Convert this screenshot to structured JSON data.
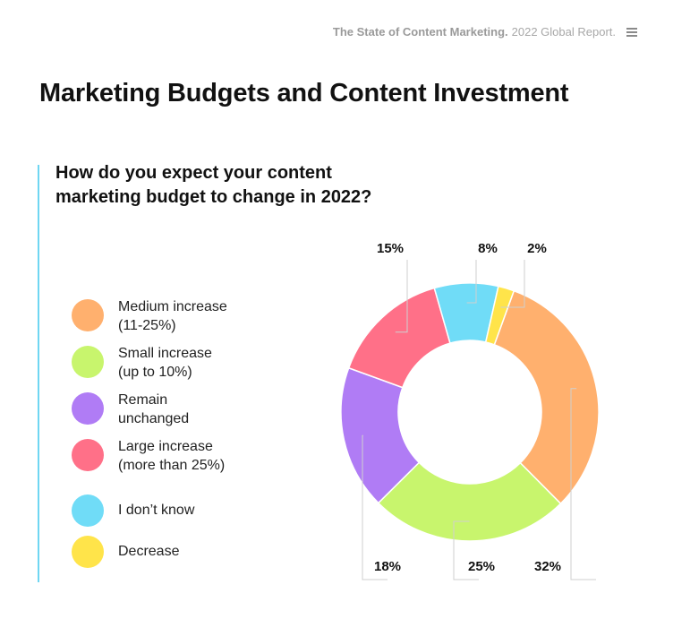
{
  "header": {
    "report_title_strong": "The State of Content Marketing.",
    "report_title_light": "2022 Global Report.",
    "menu_icon": "hamburger-menu-icon"
  },
  "page_title": "Marketing Budgets and Content Investment",
  "question": "How do you expect your content marketing budget to change in 2022?",
  "colors": {
    "accent_line": "#6fd6f2"
  },
  "chart_data": {
    "type": "pie",
    "variant": "donut",
    "title": "How do you expect your content marketing budget to change in 2022?",
    "legend_position": "left",
    "slices": [
      {
        "label": "Medium increase (11-25%)",
        "value": 32,
        "display": "32%",
        "color": "#ffb06e"
      },
      {
        "label": "Small increase (up to 10%)",
        "value": 25,
        "display": "25%",
        "color": "#c8f56d"
      },
      {
        "label": "Remain unchanged",
        "value": 18,
        "display": "18%",
        "color": "#b07cf5"
      },
      {
        "label": "Large increase (more than 25%)",
        "value": 15,
        "display": "15%",
        "color": "#ff7088"
      },
      {
        "label": "I don’t know",
        "value": 8,
        "display": "8%",
        "color": "#70dcf7"
      },
      {
        "label": "Decrease",
        "value": 2,
        "display": "2%",
        "color": "#ffe44a"
      }
    ]
  },
  "legend": [
    {
      "line1": "Medium increase",
      "line2": "(11-25%)"
    },
    {
      "line1": "Small increase",
      "line2": "(up to 10%)"
    },
    {
      "line1": "Remain",
      "line2": "unchanged"
    },
    {
      "line1": "Large increase",
      "line2": "(more than 25%)"
    },
    {
      "line1": "I don’t know",
      "line2": ""
    },
    {
      "line1": "Decrease",
      "line2": ""
    }
  ]
}
